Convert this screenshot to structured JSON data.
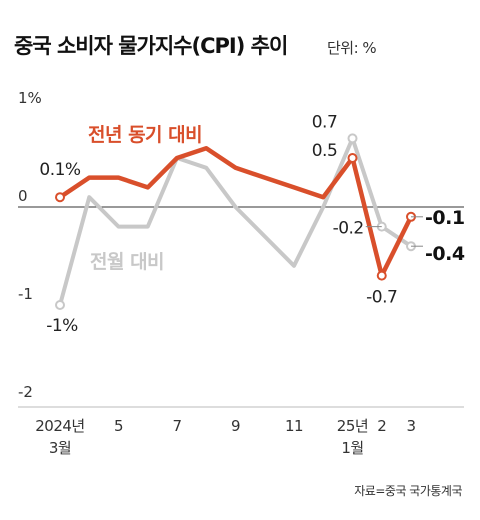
{
  "title": "중국 소비자 물가지수(CPI) 추이",
  "unit": "단위: %",
  "source": "자료=중국 국가통계국",
  "chart_data": {
    "type": "line",
    "x": [
      "2024-03",
      "2024-04",
      "2024-05",
      "2024-06",
      "2024-07",
      "2024-08",
      "2024-09",
      "2024-10",
      "2024-11",
      "2024-12",
      "2025-01",
      "2025-02",
      "2025-03"
    ],
    "tick_labels": [
      {
        "x_index": 0,
        "lines": [
          "2024년",
          "3월"
        ]
      },
      {
        "x_index": 2,
        "lines": [
          "5"
        ]
      },
      {
        "x_index": 4,
        "lines": [
          "7"
        ]
      },
      {
        "x_index": 6,
        "lines": [
          "9"
        ]
      },
      {
        "x_index": 8,
        "lines": [
          "11"
        ]
      },
      {
        "x_index": 10,
        "lines": [
          "25년",
          "1월"
        ]
      },
      {
        "x_index": 11,
        "lines": [
          "2"
        ]
      },
      {
        "x_index": 12,
        "lines": [
          "3"
        ]
      }
    ],
    "y_ticks": [
      {
        "value": 1,
        "label": "1%"
      },
      {
        "value": 0,
        "label": "0"
      },
      {
        "value": -1,
        "label": "-1"
      },
      {
        "value": -2,
        "label": "-2"
      }
    ],
    "ylim": [
      -2,
      1
    ],
    "zero_line": true,
    "series": [
      {
        "name": "전월 대비",
        "color": "#c8c8c8",
        "values": [
          -1.0,
          0.1,
          -0.2,
          -0.2,
          0.5,
          0.4,
          0.0,
          -0.3,
          -0.6,
          0.0,
          0.7,
          -0.2,
          -0.4
        ],
        "highlight_points": [
          0,
          10,
          11,
          12
        ]
      },
      {
        "name": "전년 동기 대비",
        "color": "#d94f2b",
        "values": [
          0.1,
          0.3,
          0.3,
          0.2,
          0.5,
          0.6,
          0.4,
          0.3,
          0.2,
          0.1,
          0.5,
          -0.7,
          -0.1
        ],
        "highlight_points": [
          0,
          10,
          11,
          12
        ]
      }
    ],
    "data_labels": [
      {
        "series": 1,
        "index": 0,
        "text": "0.1%"
      },
      {
        "series": 0,
        "index": 0,
        "text": "-1%"
      },
      {
        "series": 0,
        "index": 10,
        "text": "0.7"
      },
      {
        "series": 1,
        "index": 10,
        "text": "0.5"
      },
      {
        "series": 0,
        "index": 11,
        "text": "-0.2"
      },
      {
        "series": 1,
        "index": 11,
        "text": "-0.7"
      },
      {
        "series": 1,
        "index": 12,
        "text": "-0.1"
      },
      {
        "series": 0,
        "index": 12,
        "text": "-0.4"
      }
    ]
  }
}
